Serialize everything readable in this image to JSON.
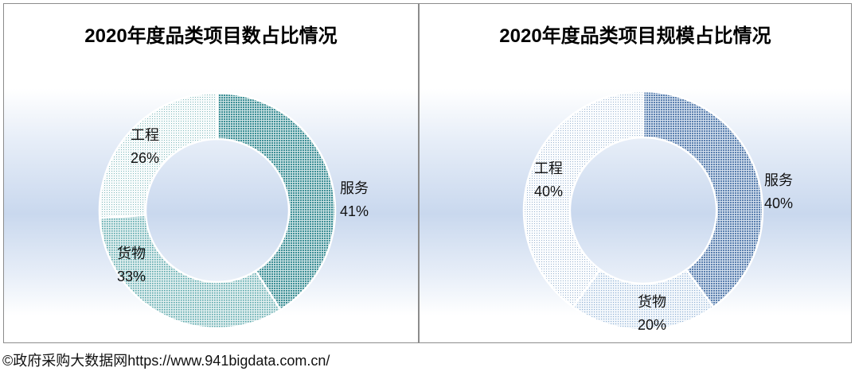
{
  "chart_data": [
    {
      "type": "pie",
      "title": "2020年度品类项目数占比情况",
      "slices": [
        {
          "name": "服务",
          "value": 41,
          "label": "41%",
          "color": "#3d8f96"
        },
        {
          "name": "货物",
          "value": 33,
          "label": "33%",
          "color": "#57a6aa"
        },
        {
          "name": "工程",
          "value": 26,
          "label": "26%",
          "color": "#a3ced0"
        }
      ]
    },
    {
      "type": "pie",
      "title": "2020年度品类项目规模占比情况",
      "slices": [
        {
          "name": "服务",
          "value": 40,
          "label": "40%",
          "color": "#5a7fae"
        },
        {
          "name": "货物",
          "value": 20,
          "label": "20%",
          "color": "#a6c3de"
        },
        {
          "name": "工程",
          "value": 40,
          "label": "40%",
          "color": "#b6c9df"
        }
      ]
    }
  ],
  "footer": {
    "watermark": "©政府采购大数据网https://www.941bigdata.com.cn/"
  }
}
